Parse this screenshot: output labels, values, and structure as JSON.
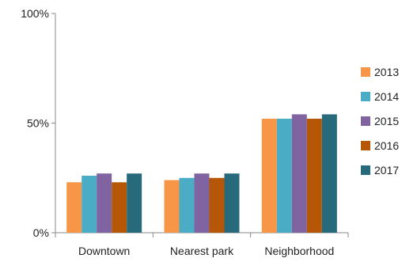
{
  "chart_data": {
    "type": "bar",
    "categories": [
      "Downtown",
      "Nearest park",
      "Neighborhood"
    ],
    "series": [
      {
        "name": "2013",
        "values": [
          23,
          24,
          52
        ],
        "color": "#F79646"
      },
      {
        "name": "2014",
        "values": [
          26,
          25,
          52
        ],
        "color": "#4BACC6"
      },
      {
        "name": "2015",
        "values": [
          27,
          27,
          54
        ],
        "color": "#8064A2"
      },
      {
        "name": "2016",
        "values": [
          23,
          25,
          52
        ],
        "color": "#B65708"
      },
      {
        "name": "2017",
        "values": [
          27,
          27,
          54
        ],
        "color": "#276A7C"
      }
    ],
    "ylim": [
      0,
      100
    ],
    "yticks": [
      0,
      50,
      100
    ],
    "ytick_labels": [
      "0%",
      "50%",
      "100%"
    ],
    "title": "",
    "xlabel": "",
    "ylabel": "",
    "grid": false,
    "legend_position": "right"
  }
}
